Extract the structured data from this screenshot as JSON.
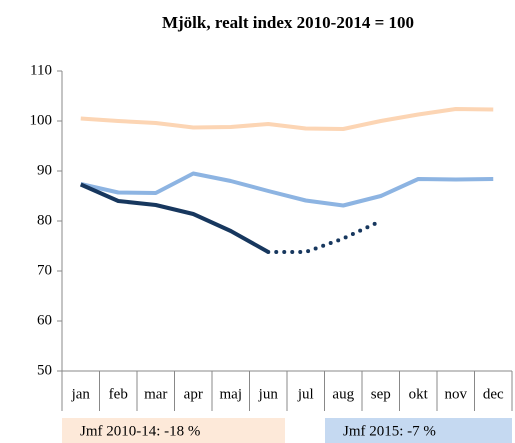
{
  "chart_data": {
    "type": "line",
    "title": "Mjölk, realt index 2010-2014 = 100",
    "categories": [
      "jan",
      "feb",
      "mar",
      "apr",
      "maj",
      "jun",
      "jul",
      "aug",
      "sep",
      "okt",
      "nov",
      "dec"
    ],
    "series": [
      {
        "color": "#fcd5b4",
        "style": "solid",
        "values": [
          100.5,
          100,
          99.6,
          98.7,
          98.8,
          99.4,
          98.5,
          98.4,
          100,
          101.3,
          102.4,
          102.3
        ]
      },
      {
        "color": "#8db4e2",
        "style": "solid",
        "values": [
          87.4,
          85.7,
          85.6,
          89.5,
          88,
          86,
          84.1,
          83.1,
          85,
          88.4,
          88.3,
          88.4
        ]
      },
      {
        "color": "#17375e",
        "style": "solid",
        "values": [
          87.3,
          84,
          83.2,
          81.4,
          78,
          73.8,
          null,
          null,
          null,
          null,
          null,
          null
        ]
      },
      {
        "color": "#17375e",
        "style": "dotted",
        "values": [
          null,
          null,
          null,
          null,
          null,
          73.8,
          73.8,
          76.5,
          80,
          null,
          null,
          null
        ]
      }
    ],
    "ylim": [
      50,
      110
    ],
    "yticks": [
      50,
      60,
      70,
      80,
      90,
      100,
      110
    ],
    "grid": false,
    "annotations": [
      {
        "text": "Jmf 2010-14: -18 %",
        "color": "#fde9d9"
      },
      {
        "text": "Jmf 2015: -7 %",
        "color": "#c5d9f1"
      }
    ]
  }
}
